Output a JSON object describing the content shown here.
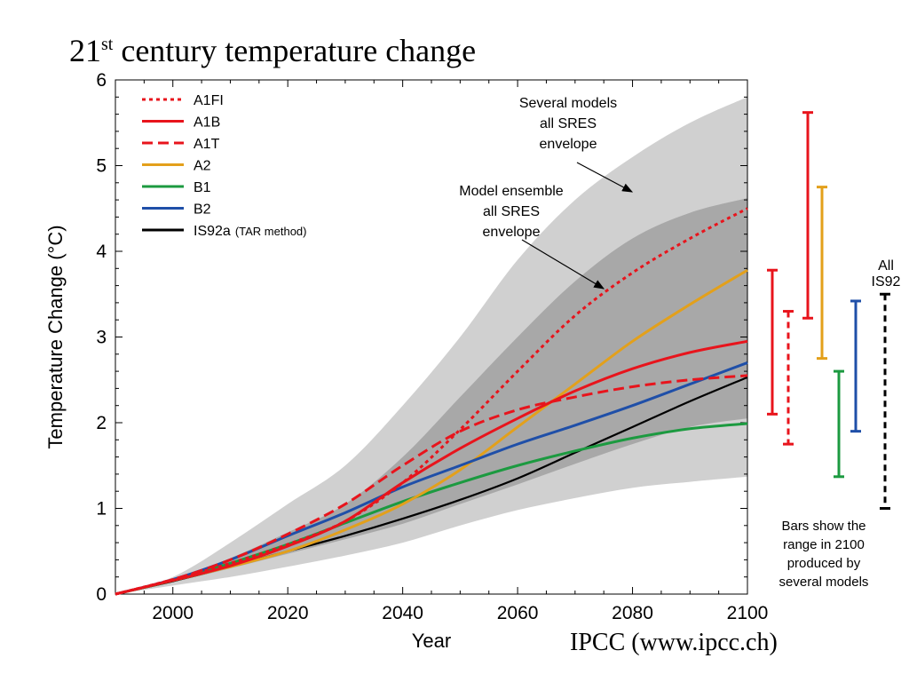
{
  "slide": {
    "title_main": "21",
    "title_sup": "st",
    "title_rest": " century temperature change",
    "credit": "IPCC (www.ipcc.ch)"
  },
  "chart_data": {
    "type": "line",
    "xlabel": "Year",
    "ylabel": "Temperature Change (°C)",
    "xlim": [
      1990,
      2100
    ],
    "ylim": [
      0,
      6
    ],
    "xticks": [
      2000,
      2020,
      2040,
      2060,
      2080,
      2100
    ],
    "yticks": [
      0,
      1,
      2,
      3,
      4,
      5,
      6
    ],
    "grid": false,
    "legend_position": "top-left",
    "series": [
      {
        "name": "A1FI",
        "color": "#e8141c",
        "style": "dotted",
        "x": [
          1990,
          2000,
          2010,
          2020,
          2030,
          2040,
          2050,
          2060,
          2070,
          2080,
          2090,
          2100
        ],
        "y": [
          0,
          0.17,
          0.36,
          0.58,
          0.85,
          1.3,
          1.92,
          2.6,
          3.25,
          3.75,
          4.15,
          4.5
        ]
      },
      {
        "name": "A1B",
        "color": "#e8141c",
        "style": "solid",
        "x": [
          1990,
          2000,
          2010,
          2020,
          2030,
          2040,
          2050,
          2060,
          2070,
          2080,
          2090,
          2100
        ],
        "y": [
          0,
          0.16,
          0.33,
          0.56,
          0.85,
          1.3,
          1.7,
          2.05,
          2.37,
          2.63,
          2.82,
          2.95
        ]
      },
      {
        "name": "A1T",
        "color": "#e8141c",
        "style": "dashed",
        "x": [
          1990,
          2000,
          2010,
          2020,
          2030,
          2040,
          2050,
          2060,
          2070,
          2080,
          2090,
          2100
        ],
        "y": [
          0,
          0.17,
          0.4,
          0.7,
          1.05,
          1.5,
          1.9,
          2.15,
          2.3,
          2.42,
          2.5,
          2.55
        ]
      },
      {
        "name": "A2",
        "color": "#e3a01b",
        "style": "solid",
        "x": [
          1990,
          2000,
          2010,
          2020,
          2030,
          2040,
          2050,
          2060,
          2070,
          2080,
          2090,
          2100
        ],
        "y": [
          0,
          0.16,
          0.32,
          0.5,
          0.75,
          1.05,
          1.45,
          1.95,
          2.45,
          2.95,
          3.38,
          3.78
        ]
      },
      {
        "name": "B1",
        "color": "#1c9a40",
        "style": "solid",
        "x": [
          1990,
          2000,
          2010,
          2020,
          2030,
          2040,
          2050,
          2060,
          2070,
          2080,
          2090,
          2100
        ],
        "y": [
          0,
          0.16,
          0.36,
          0.58,
          0.83,
          1.08,
          1.3,
          1.5,
          1.67,
          1.82,
          1.93,
          1.99
        ]
      },
      {
        "name": "B2",
        "color": "#1f4fa8",
        "style": "solid",
        "x": [
          1990,
          2000,
          2010,
          2020,
          2030,
          2040,
          2050,
          2060,
          2070,
          2080,
          2090,
          2100
        ],
        "y": [
          0,
          0.17,
          0.4,
          0.68,
          0.95,
          1.25,
          1.5,
          1.75,
          1.97,
          2.2,
          2.45,
          2.7
        ]
      },
      {
        "name": "IS92a",
        "name_note": "(TAR method)",
        "color": "#000000",
        "style": "solid",
        "x": [
          1990,
          2000,
          2010,
          2020,
          2030,
          2040,
          2050,
          2060,
          2070,
          2080,
          2090,
          2100
        ],
        "y": [
          0,
          0.15,
          0.32,
          0.5,
          0.68,
          0.88,
          1.1,
          1.35,
          1.65,
          1.95,
          2.25,
          2.53
        ]
      }
    ],
    "envelopes": [
      {
        "name": "several_models",
        "color": "#d0d0d0",
        "x": [
          1990,
          2000,
          2010,
          2020,
          2030,
          2040,
          2050,
          2060,
          2070,
          2080,
          2090,
          2100
        ],
        "upper": [
          0,
          0.2,
          0.6,
          1.05,
          1.5,
          2.2,
          3.0,
          3.9,
          4.6,
          5.1,
          5.5,
          5.8
        ],
        "lower": [
          0,
          0.1,
          0.2,
          0.32,
          0.45,
          0.6,
          0.8,
          0.98,
          1.12,
          1.24,
          1.31,
          1.37
        ]
      },
      {
        "name": "model_ensemble",
        "color": "#a8a8a8",
        "x": [
          1990,
          2000,
          2010,
          2020,
          2030,
          2040,
          2050,
          2060,
          2070,
          2080,
          2090,
          2100
        ],
        "upper": [
          0,
          0.17,
          0.42,
          0.72,
          1.05,
          1.6,
          2.3,
          3.0,
          3.65,
          4.15,
          4.45,
          4.62
        ],
        "lower": [
          0,
          0.14,
          0.3,
          0.47,
          0.64,
          0.82,
          1.05,
          1.28,
          1.52,
          1.75,
          1.95,
          2.05
        ]
      }
    ],
    "annotations": [
      {
        "lines": [
          "Several models",
          "all SRES",
          "envelope"
        ]
      },
      {
        "lines": [
          "Model ensemble",
          "all SRES",
          "envelope"
        ]
      },
      {
        "lines": [
          "All",
          "IS92"
        ]
      },
      {
        "lines": [
          "Bars show the",
          "range in 2100",
          "produced by",
          "several models"
        ]
      }
    ],
    "range_bars_2100": [
      {
        "series": "A1B",
        "color": "#e8141c",
        "style": "solid",
        "low": 2.1,
        "high": 3.78
      },
      {
        "series": "A1T",
        "color": "#e8141c",
        "style": "dashed",
        "low": 1.75,
        "high": 3.3
      },
      {
        "series": "A1FI",
        "color": "#e8141c",
        "style": "dotted",
        "low": 3.22,
        "high": 5.62
      },
      {
        "series": "A2",
        "color": "#e3a01b",
        "style": "solid",
        "low": 2.75,
        "high": 4.75
      },
      {
        "series": "B1",
        "color": "#1c9a40",
        "style": "solid",
        "low": 1.37,
        "high": 2.6
      },
      {
        "series": "B2",
        "color": "#1f4fa8",
        "style": "solid",
        "low": 1.9,
        "high": 3.42
      },
      {
        "series": "All IS92",
        "color": "#000000",
        "style": "dashed",
        "low": 1.0,
        "high": 3.5
      }
    ]
  }
}
